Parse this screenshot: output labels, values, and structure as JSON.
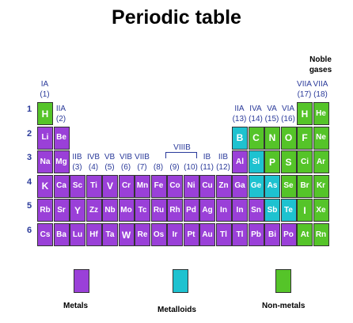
{
  "title": "Periodic table",
  "noble_label": "Noble\ngases",
  "colors": {
    "metal": "#9a40d8",
    "metalloid": "#1ec2d0",
    "nonmetal": "#55c429"
  },
  "periods": [
    "1",
    "2",
    "3",
    "4",
    "5",
    "6"
  ],
  "group_labels": [
    {
      "text": "IA\n(1)",
      "col": 1,
      "row": 0
    },
    {
      "text": "IIA\n(2)",
      "col": 2,
      "row": 1
    },
    {
      "text": "IIB\n(3)",
      "col": 3,
      "row": 2
    },
    {
      "text": "IVB\n(4)",
      "col": 4,
      "row": 2
    },
    {
      "text": "VB\n(5)",
      "col": 5,
      "row": 2
    },
    {
      "text": "VIB\n(6)",
      "col": 6,
      "row": 2
    },
    {
      "text": "VIIB\n(7)",
      "col": 7,
      "row": 2
    },
    {
      "text": "(8)",
      "col": 8,
      "row": 2
    },
    {
      "text": "(9)",
      "col": 9,
      "row": 2
    },
    {
      "text": "(10)",
      "col": 10,
      "row": 2
    },
    {
      "text": "IB\n(11)",
      "col": 11,
      "row": 2
    },
    {
      "text": "IIB\n(12)",
      "col": 12,
      "row": 2
    },
    {
      "text": "IIA\n(13)",
      "col": 13,
      "row": 1
    },
    {
      "text": "IVA\n(14)",
      "col": 14,
      "row": 1
    },
    {
      "text": "VA\n(15)",
      "col": 15,
      "row": 1
    },
    {
      "text": "VIA\n(16)",
      "col": 16,
      "row": 1
    },
    {
      "text": "VIIA\n(17)",
      "col": 17,
      "row": 0
    },
    {
      "text": "VIIA\n(18)",
      "col": 18,
      "row": 0
    }
  ],
  "viii_label": "VIIIB",
  "elements": [
    {
      "s": "H",
      "r": 1,
      "c": 1,
      "t": "nonmetal"
    },
    {
      "s": "H",
      "r": 1,
      "c": 17,
      "t": "nonmetal"
    },
    {
      "s": "He",
      "r": 1,
      "c": 18,
      "t": "nonmetal"
    },
    {
      "s": "Li",
      "r": 2,
      "c": 1,
      "t": "metal"
    },
    {
      "s": "Be",
      "r": 2,
      "c": 2,
      "t": "metal"
    },
    {
      "s": "B",
      "r": 2,
      "c": 13,
      "t": "metalloid"
    },
    {
      "s": "C",
      "r": 2,
      "c": 14,
      "t": "nonmetal"
    },
    {
      "s": "N",
      "r": 2,
      "c": 15,
      "t": "nonmetal"
    },
    {
      "s": "O",
      "r": 2,
      "c": 16,
      "t": "nonmetal"
    },
    {
      "s": "F",
      "r": 2,
      "c": 17,
      "t": "nonmetal"
    },
    {
      "s": "Ne",
      "r": 2,
      "c": 18,
      "t": "nonmetal"
    },
    {
      "s": "Na",
      "r": 3,
      "c": 1,
      "t": "metal"
    },
    {
      "s": "Mg",
      "r": 3,
      "c": 2,
      "t": "metal"
    },
    {
      "s": "Al",
      "r": 3,
      "c": 13,
      "t": "metal"
    },
    {
      "s": "Si",
      "r": 3,
      "c": 14,
      "t": "metalloid"
    },
    {
      "s": "P",
      "r": 3,
      "c": 15,
      "t": "nonmetal"
    },
    {
      "s": "S",
      "r": 3,
      "c": 16,
      "t": "nonmetal"
    },
    {
      "s": "Ci",
      "r": 3,
      "c": 17,
      "t": "nonmetal"
    },
    {
      "s": "Ar",
      "r": 3,
      "c": 18,
      "t": "nonmetal"
    },
    {
      "s": "K",
      "r": 4,
      "c": 1,
      "t": "metal"
    },
    {
      "s": "Ca",
      "r": 4,
      "c": 2,
      "t": "metal"
    },
    {
      "s": "Sc",
      "r": 4,
      "c": 3,
      "t": "metal"
    },
    {
      "s": "Ti",
      "r": 4,
      "c": 4,
      "t": "metal"
    },
    {
      "s": "V",
      "r": 4,
      "c": 5,
      "t": "metal"
    },
    {
      "s": "Cr",
      "r": 4,
      "c": 6,
      "t": "metal"
    },
    {
      "s": "Mn",
      "r": 4,
      "c": 7,
      "t": "metal"
    },
    {
      "s": "Fe",
      "r": 4,
      "c": 8,
      "t": "metal"
    },
    {
      "s": "Co",
      "r": 4,
      "c": 9,
      "t": "metal"
    },
    {
      "s": "Ni",
      "r": 4,
      "c": 10,
      "t": "metal"
    },
    {
      "s": "Cu",
      "r": 4,
      "c": 11,
      "t": "metal"
    },
    {
      "s": "Zn",
      "r": 4,
      "c": 12,
      "t": "metal"
    },
    {
      "s": "Ga",
      "r": 4,
      "c": 13,
      "t": "metal"
    },
    {
      "s": "Ge",
      "r": 4,
      "c": 14,
      "t": "metalloid"
    },
    {
      "s": "As",
      "r": 4,
      "c": 15,
      "t": "metalloid"
    },
    {
      "s": "Se",
      "r": 4,
      "c": 16,
      "t": "nonmetal"
    },
    {
      "s": "Br",
      "r": 4,
      "c": 17,
      "t": "nonmetal"
    },
    {
      "s": "Kr",
      "r": 4,
      "c": 18,
      "t": "nonmetal"
    },
    {
      "s": "Rb",
      "r": 5,
      "c": 1,
      "t": "metal"
    },
    {
      "s": "Sr",
      "r": 5,
      "c": 2,
      "t": "metal"
    },
    {
      "s": "Y",
      "r": 5,
      "c": 3,
      "t": "metal"
    },
    {
      "s": "Zz",
      "r": 5,
      "c": 4,
      "t": "metal"
    },
    {
      "s": "Nb",
      "r": 5,
      "c": 5,
      "t": "metal"
    },
    {
      "s": "Mo",
      "r": 5,
      "c": 6,
      "t": "metal"
    },
    {
      "s": "Tc",
      "r": 5,
      "c": 7,
      "t": "metal"
    },
    {
      "s": "Ru",
      "r": 5,
      "c": 8,
      "t": "metal"
    },
    {
      "s": "Rh",
      "r": 5,
      "c": 9,
      "t": "metal"
    },
    {
      "s": "Pd",
      "r": 5,
      "c": 10,
      "t": "metal"
    },
    {
      "s": "Ag",
      "r": 5,
      "c": 11,
      "t": "metal"
    },
    {
      "s": "In",
      "r": 5,
      "c": 12,
      "t": "metal"
    },
    {
      "s": "In",
      "r": 5,
      "c": 13,
      "t": "metal"
    },
    {
      "s": "Sn",
      "r": 5,
      "c": 14,
      "t": "metal"
    },
    {
      "s": "Sb",
      "r": 5,
      "c": 15,
      "t": "metalloid"
    },
    {
      "s": "Te",
      "r": 5,
      "c": 16,
      "t": "metalloid"
    },
    {
      "s": "I",
      "r": 5,
      "c": 17,
      "t": "nonmetal"
    },
    {
      "s": "Xe",
      "r": 5,
      "c": 18,
      "t": "nonmetal"
    },
    {
      "s": "Cs",
      "r": 6,
      "c": 1,
      "t": "metal"
    },
    {
      "s": "Ba",
      "r": 6,
      "c": 2,
      "t": "metal"
    },
    {
      "s": "Lu",
      "r": 6,
      "c": 3,
      "t": "metal"
    },
    {
      "s": "Hf",
      "r": 6,
      "c": 4,
      "t": "metal"
    },
    {
      "s": "Ta",
      "r": 6,
      "c": 5,
      "t": "metal"
    },
    {
      "s": "W",
      "r": 6,
      "c": 6,
      "t": "metal"
    },
    {
      "s": "Re",
      "r": 6,
      "c": 7,
      "t": "metal"
    },
    {
      "s": "Os",
      "r": 6,
      "c": 8,
      "t": "metal"
    },
    {
      "s": "Ir",
      "r": 6,
      "c": 9,
      "t": "metal"
    },
    {
      "s": "Pt",
      "r": 6,
      "c": 10,
      "t": "metal"
    },
    {
      "s": "Au",
      "r": 6,
      "c": 11,
      "t": "metal"
    },
    {
      "s": "Tl",
      "r": 6,
      "c": 12,
      "t": "metal"
    },
    {
      "s": "Tl",
      "r": 6,
      "c": 13,
      "t": "metal"
    },
    {
      "s": "Pb",
      "r": 6,
      "c": 14,
      "t": "metal"
    },
    {
      "s": "Bi",
      "r": 6,
      "c": 15,
      "t": "metal"
    },
    {
      "s": "Po",
      "r": 6,
      "c": 16,
      "t": "metal"
    },
    {
      "s": "At",
      "r": 6,
      "c": 17,
      "t": "nonmetal"
    },
    {
      "s": "Rn",
      "r": 6,
      "c": 18,
      "t": "nonmetal"
    }
  ],
  "legend": [
    {
      "key": "metal",
      "label": "Metals"
    },
    {
      "key": "metalloid",
      "label": "Metalloids"
    },
    {
      "key": "nonmetal",
      "label": "Non-metals"
    }
  ]
}
